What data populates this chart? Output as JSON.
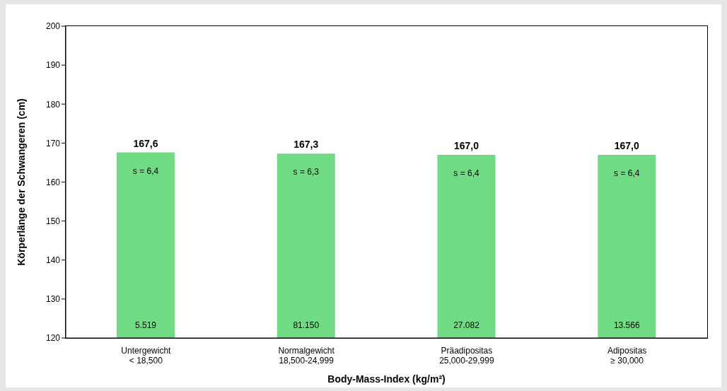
{
  "chart_data": {
    "type": "bar",
    "xlabel": "Body-Mass-Index (kg/m²)",
    "ylabel": "Körperlänge der Schwangeren (cm)",
    "categories": [
      "Untergewicht\n< 18,500",
      "Normalgewicht\n18,500-24,999",
      "Präadipositas\n25,000-29,999",
      "Adipositas\n≥ 30,000"
    ],
    "values": [
      167.6,
      167.3,
      167.0,
      167.0
    ],
    "value_labels": [
      "167,6",
      "167,3",
      "167,0",
      "167,0"
    ],
    "color": "#6fdc85",
    "ylim": [
      120,
      200
    ],
    "yticks": [
      120,
      130,
      140,
      150,
      160,
      170,
      180,
      190,
      200
    ],
    "grid": false,
    "legend": false,
    "annotations": [
      "s = 6,4",
      "s = 6,3",
      "s = 6,4",
      "s = 6,4",
      "5.519",
      "81.150",
      "27.082",
      "13.566"
    ]
  }
}
